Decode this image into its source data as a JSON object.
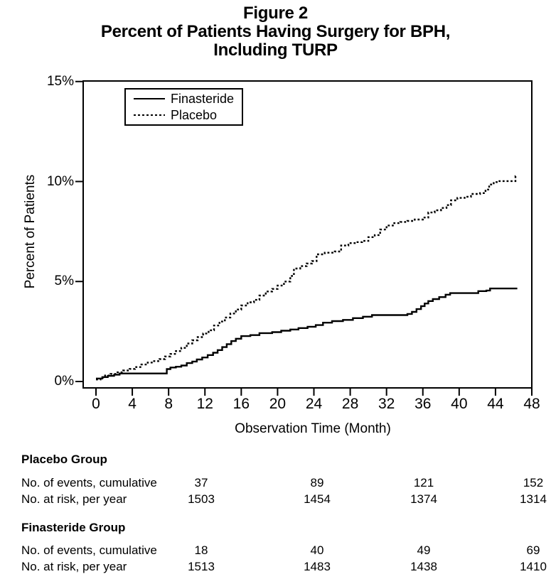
{
  "figure": {
    "label": "Figure 2",
    "title_line1": "Percent of Patients Having Surgery for BPH,",
    "title_line2": "Including TURP"
  },
  "colors": {
    "ink": "#000000",
    "background": "#ffffff"
  },
  "chart_data": {
    "type": "line",
    "subtype": "kaplan-meier-cumulative-incidence-step",
    "xlabel": "Observation Time (Month)",
    "ylabel": "Percent of Patients",
    "xlim": [
      0,
      48
    ],
    "ylim": [
      0,
      15
    ],
    "grid": "off",
    "legend_position": "top-left-inside",
    "x_ticks": [
      "0",
      "4",
      "8",
      "12",
      "16",
      "20",
      "24",
      "28",
      "32",
      "36",
      "40",
      "44",
      "48"
    ],
    "x_tick_values": [
      0,
      4,
      8,
      12,
      16,
      20,
      24,
      28,
      32,
      36,
      40,
      44,
      48
    ],
    "y_ticks": [
      "0%",
      "5%",
      "10%",
      "15%"
    ],
    "y_tick_values": [
      0,
      5,
      10,
      15
    ],
    "series": [
      {
        "name": "Finasteride",
        "style": "solid",
        "points": [
          [
            0,
            0.15
          ],
          [
            0.7,
            0.22
          ],
          [
            1.3,
            0.28
          ],
          [
            2,
            0.34
          ],
          [
            2.6,
            0.4
          ],
          [
            7.4,
            0.4
          ],
          [
            7.8,
            0.62
          ],
          [
            8.2,
            0.7
          ],
          [
            8.8,
            0.74
          ],
          [
            9.4,
            0.8
          ],
          [
            10,
            0.92
          ],
          [
            10.6,
            1.0
          ],
          [
            11.1,
            1.1
          ],
          [
            11.7,
            1.2
          ],
          [
            12.3,
            1.32
          ],
          [
            12.9,
            1.44
          ],
          [
            13.4,
            1.57
          ],
          [
            13.9,
            1.72
          ],
          [
            14.4,
            1.87
          ],
          [
            14.9,
            2.02
          ],
          [
            15.4,
            2.14
          ],
          [
            16,
            2.27
          ],
          [
            17,
            2.32
          ],
          [
            18,
            2.42
          ],
          [
            19.4,
            2.47
          ],
          [
            20.4,
            2.54
          ],
          [
            21.4,
            2.6
          ],
          [
            22.3,
            2.67
          ],
          [
            23.3,
            2.74
          ],
          [
            24.2,
            2.82
          ],
          [
            25,
            2.94
          ],
          [
            26,
            3.02
          ],
          [
            27.2,
            3.08
          ],
          [
            28.3,
            3.17
          ],
          [
            29.4,
            3.24
          ],
          [
            30.4,
            3.32
          ],
          [
            34.3,
            3.38
          ],
          [
            34.8,
            3.48
          ],
          [
            35.3,
            3.62
          ],
          [
            35.8,
            3.77
          ],
          [
            36.2,
            3.9
          ],
          [
            36.6,
            4.02
          ],
          [
            37.1,
            4.12
          ],
          [
            37.8,
            4.22
          ],
          [
            38.5,
            4.34
          ],
          [
            39,
            4.42
          ],
          [
            41.7,
            4.42
          ],
          [
            42.1,
            4.52
          ],
          [
            43,
            4.55
          ],
          [
            43.4,
            4.65
          ],
          [
            46.4,
            4.65
          ]
        ]
      },
      {
        "name": "Placebo",
        "style": "dotted",
        "points": [
          [
            0,
            0.1
          ],
          [
            0.5,
            0.2
          ],
          [
            1,
            0.3
          ],
          [
            1.6,
            0.38
          ],
          [
            2.2,
            0.46
          ],
          [
            3,
            0.55
          ],
          [
            3.7,
            0.63
          ],
          [
            4.3,
            0.72
          ],
          [
            5,
            0.85
          ],
          [
            5.7,
            0.95
          ],
          [
            6.4,
            1.02
          ],
          [
            7,
            1.12
          ],
          [
            7.6,
            1.25
          ],
          [
            8.2,
            1.38
          ],
          [
            8.8,
            1.52
          ],
          [
            9.4,
            1.68
          ],
          [
            10,
            1.9
          ],
          [
            10.6,
            2.06
          ],
          [
            11.2,
            2.22
          ],
          [
            11.8,
            2.4
          ],
          [
            12.4,
            2.56
          ],
          [
            13,
            2.8
          ],
          [
            13.6,
            3.0
          ],
          [
            14.2,
            3.2
          ],
          [
            14.8,
            3.4
          ],
          [
            15.4,
            3.6
          ],
          [
            16,
            3.8
          ],
          [
            16.7,
            3.96
          ],
          [
            17.4,
            4.08
          ],
          [
            18,
            4.3
          ],
          [
            18.7,
            4.5
          ],
          [
            19.4,
            4.63
          ],
          [
            20,
            4.8
          ],
          [
            20.7,
            5.0
          ],
          [
            21.4,
            5.28
          ],
          [
            21.8,
            5.65
          ],
          [
            22.5,
            5.77
          ],
          [
            23.2,
            5.9
          ],
          [
            23.8,
            6.02
          ],
          [
            24.3,
            6.36
          ],
          [
            25.2,
            6.44
          ],
          [
            26.3,
            6.5
          ],
          [
            27,
            6.8
          ],
          [
            27.8,
            6.92
          ],
          [
            28.6,
            6.97
          ],
          [
            29.3,
            7.03
          ],
          [
            30,
            7.22
          ],
          [
            30.7,
            7.32
          ],
          [
            31.3,
            7.6
          ],
          [
            32,
            7.8
          ],
          [
            32.7,
            7.92
          ],
          [
            33.5,
            7.98
          ],
          [
            34.3,
            8.03
          ],
          [
            35.1,
            8.1
          ],
          [
            36,
            8.2
          ],
          [
            36.6,
            8.45
          ],
          [
            37.3,
            8.56
          ],
          [
            38,
            8.68
          ],
          [
            38.6,
            8.82
          ],
          [
            39.1,
            9.06
          ],
          [
            39.8,
            9.18
          ],
          [
            40.6,
            9.24
          ],
          [
            41.3,
            9.38
          ],
          [
            42.3,
            9.42
          ],
          [
            42.9,
            9.6
          ],
          [
            43.3,
            9.85
          ],
          [
            43.8,
            9.97
          ],
          [
            44.3,
            10.02
          ],
          [
            46,
            10.02
          ],
          [
            46.2,
            10.27
          ],
          [
            46.35,
            10.27
          ]
        ]
      }
    ]
  },
  "risk_table": {
    "time_points_months": [
      12,
      24,
      36,
      48
    ],
    "groups": [
      {
        "name": "Placebo Group",
        "rows": [
          {
            "label": "No. of events, cumulative",
            "values": [
              "37",
              "89",
              "121",
              "152"
            ]
          },
          {
            "label": "No. at risk, per year",
            "values": [
              "1503",
              "1454",
              "1374",
              "1314"
            ]
          }
        ]
      },
      {
        "name": "Finasteride Group",
        "rows": [
          {
            "label": "No. of events, cumulative",
            "values": [
              "18",
              "40",
              "49",
              "69"
            ]
          },
          {
            "label": "No. at risk, per year",
            "values": [
              "1513",
              "1483",
              "1438",
              "1410"
            ]
          }
        ]
      }
    ]
  }
}
